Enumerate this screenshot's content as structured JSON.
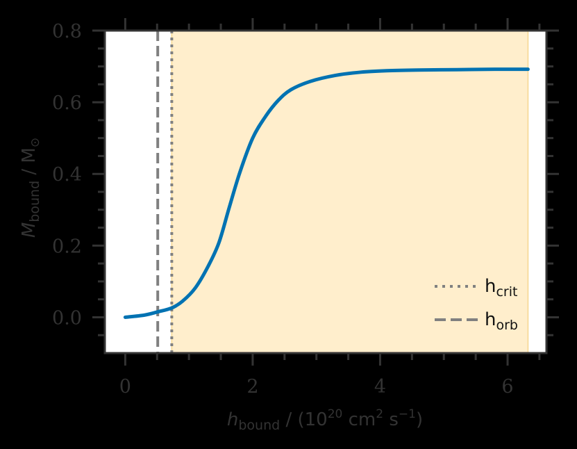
{
  "chart_data": {
    "type": "line",
    "title": "",
    "xlabel": "h_bound / (10^20 cm^2 s^-1)",
    "ylabel": "M_bound / M_sun",
    "xlim": [
      -0.32,
      6.61
    ],
    "ylim": [
      -0.1,
      0.8
    ],
    "grid": false,
    "legend_position": "lower right",
    "x_ticks": [
      0,
      2,
      4,
      6
    ],
    "x_tick_labels": [
      "0",
      "2",
      "4",
      "6"
    ],
    "y_ticks": [
      0.0,
      0.2,
      0.4,
      0.6,
      0.8
    ],
    "y_tick_labels": [
      "0.0",
      "0.2",
      "0.4",
      "0.6",
      "0.8"
    ],
    "series": [
      {
        "name": "M_bound",
        "color": "#0072B2",
        "x": [
          0.0,
          0.3,
          0.51,
          0.73,
          0.9,
          1.1,
          1.3,
          1.47,
          1.63,
          1.8,
          2.0,
          2.2,
          2.4,
          2.6,
          2.9,
          3.3,
          3.7,
          4.1,
          4.6,
          5.2,
          5.8,
          6.32
        ],
        "values": [
          0.0,
          0.006,
          0.015,
          0.026,
          0.045,
          0.082,
          0.142,
          0.208,
          0.305,
          0.405,
          0.5,
          0.56,
          0.605,
          0.635,
          0.658,
          0.675,
          0.684,
          0.688,
          0.69,
          0.691,
          0.692,
          0.692
        ]
      }
    ],
    "vlines": [
      {
        "name": "h_crit",
        "x": 0.73,
        "style": "dotted",
        "color": "#808080"
      },
      {
        "name": "h_orb",
        "x": 0.51,
        "style": "dashed",
        "color": "#808080"
      }
    ],
    "shaded_region": {
      "x_start": 0.73,
      "x_end": 6.32,
      "color": "#FFEECC",
      "edge_color": "#F8DCA0"
    },
    "legend": [
      {
        "label": "h",
        "subscript": "crit",
        "style": "dotted"
      },
      {
        "label": "h",
        "subscript": "orb",
        "style": "dashed"
      }
    ]
  },
  "labels": {
    "x_main": "h",
    "x_sub": "bound",
    "x_units_pre": " / (10",
    "x_units_exp1": "20",
    "x_units_mid": " cm",
    "x_units_exp2": "2",
    "x_units_s": " s",
    "x_units_exp3": "−1",
    "x_units_post": ")",
    "y_main": "M",
    "y_sub": "bound",
    "y_units": " / M",
    "y_sun": "⊙"
  }
}
